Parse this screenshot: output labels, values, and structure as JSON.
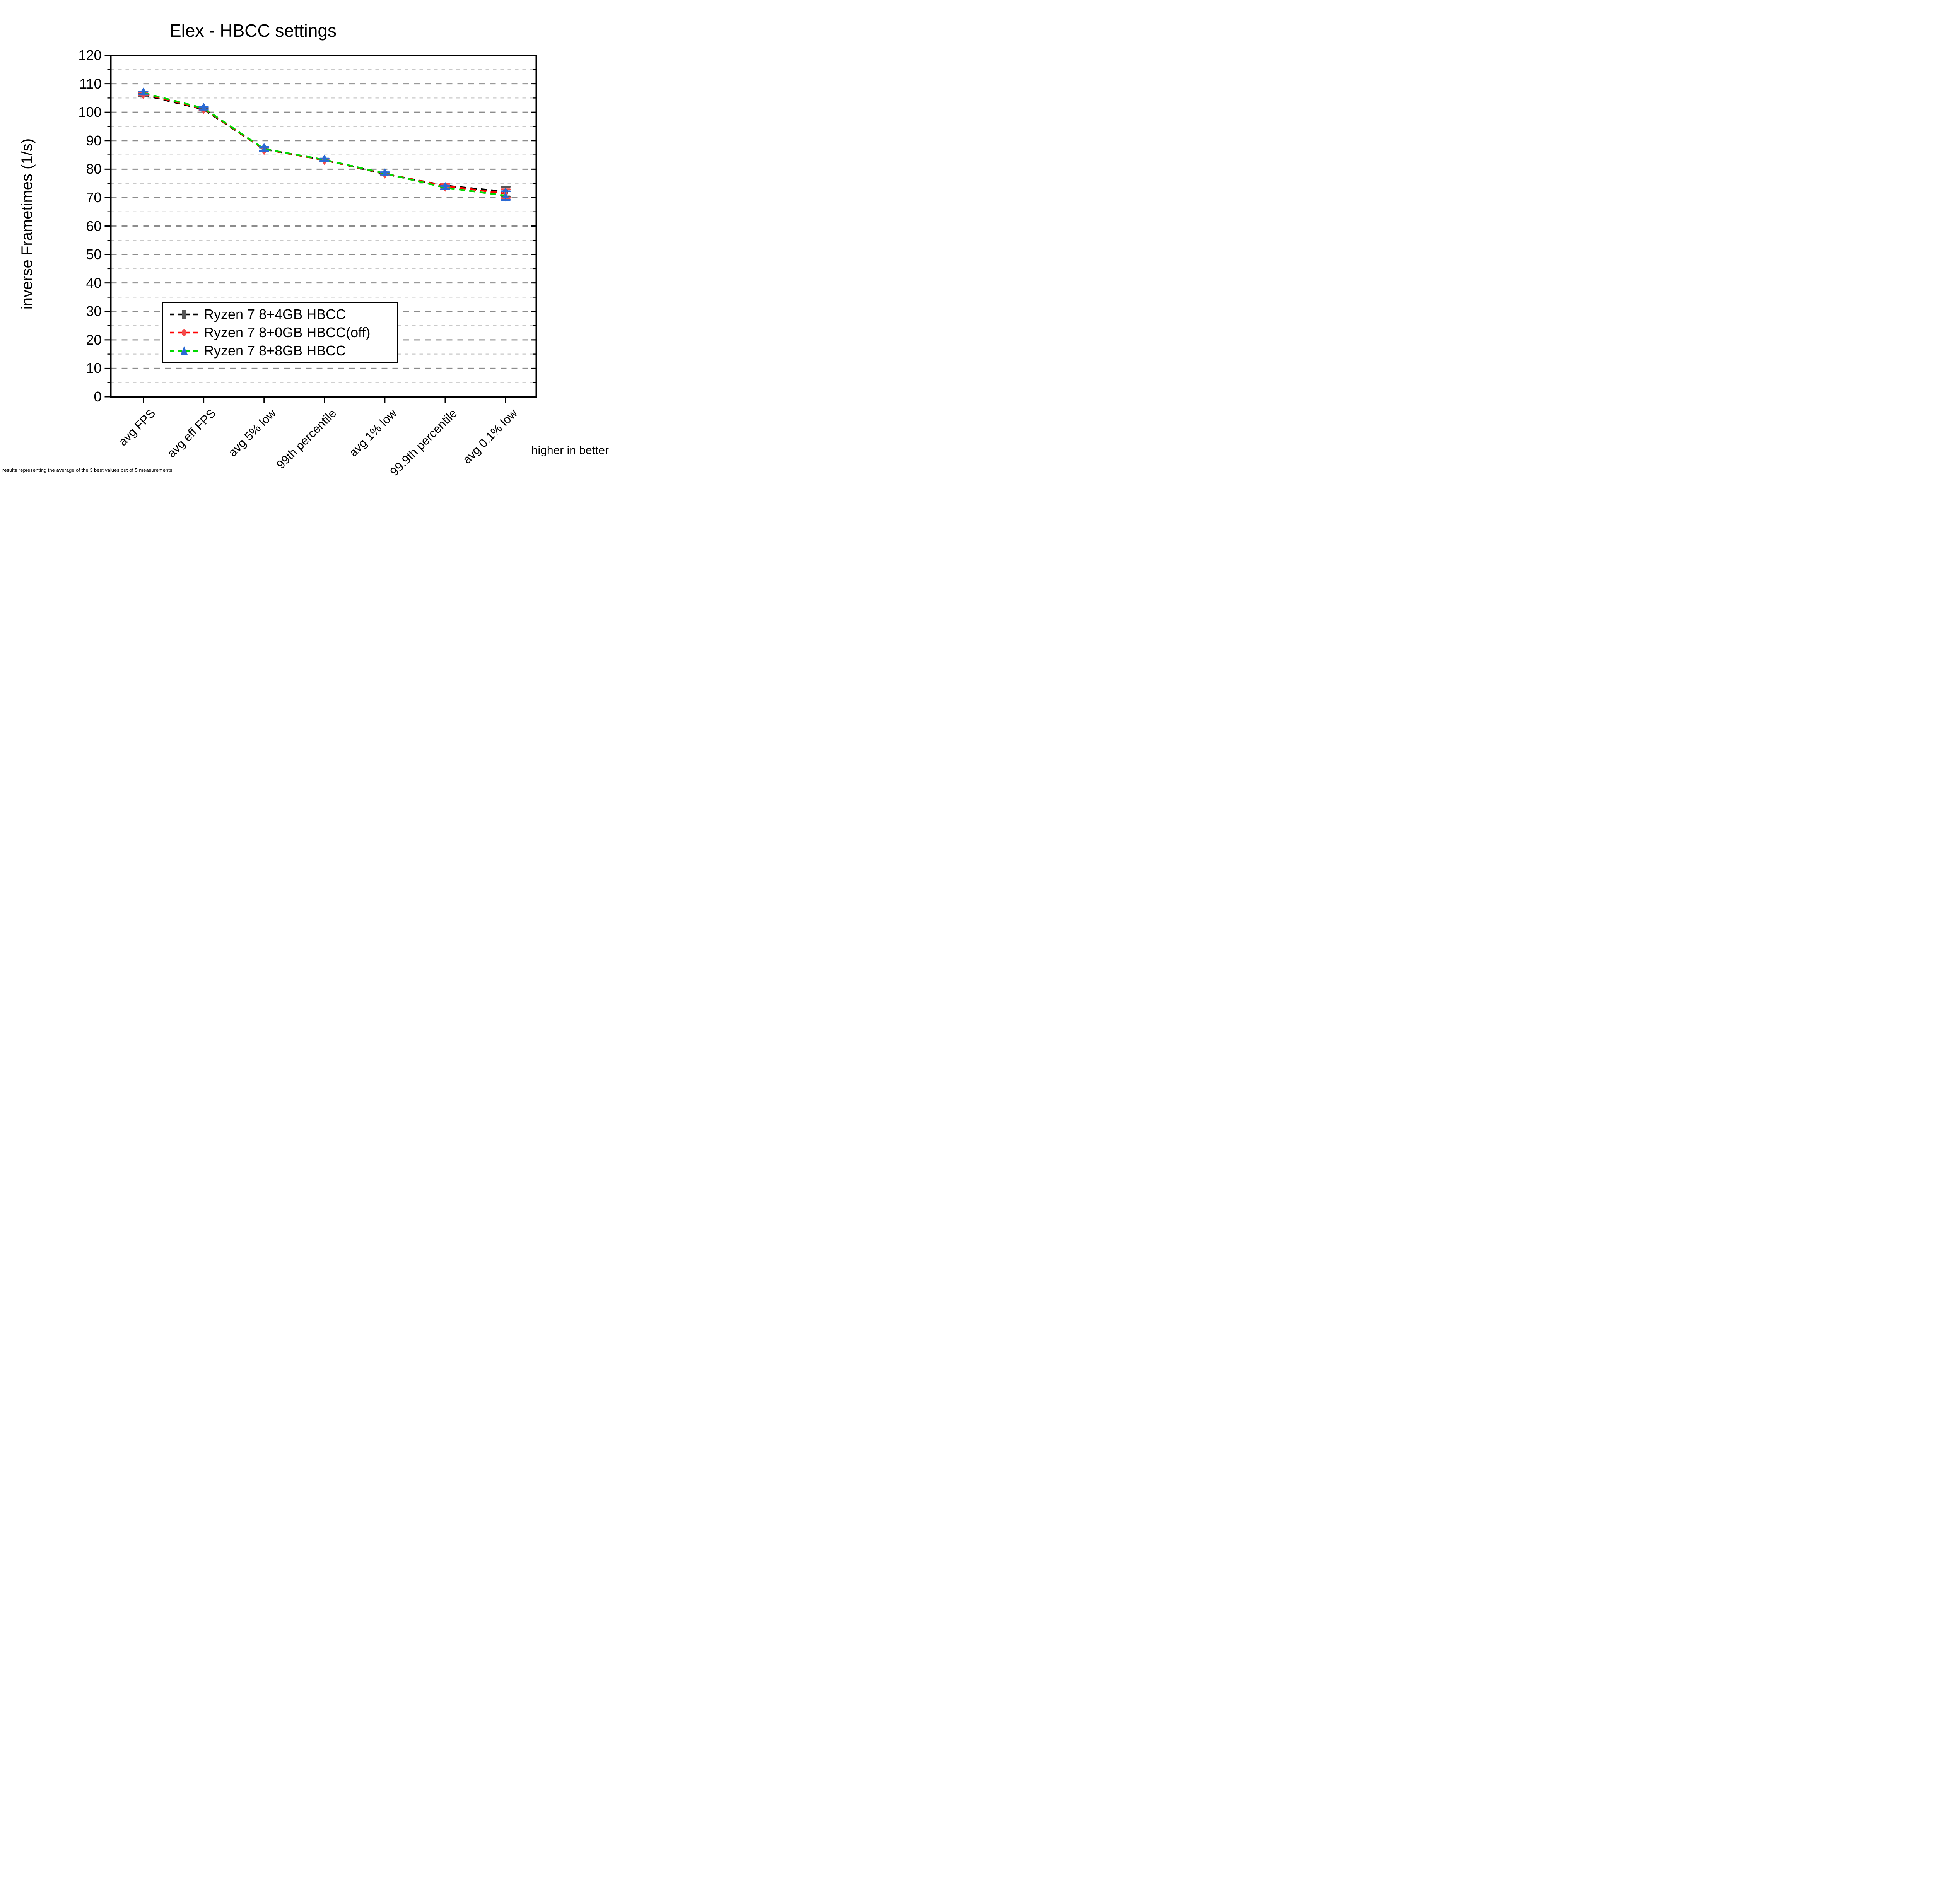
{
  "title": "Elex - HBCC settings",
  "y_axis": {
    "label": "inverse Frametimes (1/s)",
    "min": 0,
    "max": 120,
    "major_step": 10,
    "minor_step": 5,
    "tick_labels": [
      "0",
      "10",
      "20",
      "30",
      "40",
      "50",
      "60",
      "70",
      "80",
      "90",
      "100",
      "110",
      "120"
    ]
  },
  "x_axis": {
    "categories": [
      "avg FPS",
      "avg eff FPS",
      "avg 5% low",
      "99th percentile",
      "avg 1% low",
      "99.9th percentile",
      "avg 0.1% low"
    ],
    "note": "higher in better"
  },
  "legend": {
    "position": "inside bottom-left",
    "entries": [
      "Ryzen 7 8+4GB HBCC",
      "Ryzen 7 8+0GB HBCC(off)",
      "Ryzen 7 8+8GB HBCC"
    ]
  },
  "footer": "results representing the average of the 3 best values out of 5 measurements",
  "colors": {
    "major_grid": "#8c8c8c",
    "minor_grid": "#c9c9c9",
    "frame": "#000000",
    "background": "#ffffff"
  },
  "chart_data": {
    "type": "line",
    "title": "Elex - HBCC settings",
    "xlabel": "",
    "ylabel": "inverse Frametimes (1/s)",
    "ylim": [
      0,
      120
    ],
    "y_major_step": 10,
    "y_minor_step": 5,
    "grid": "horizontal dashed gridlines: dark gray at majors (10), light gray at minors (5)",
    "legend_position": "inside lower-left",
    "line_style": "dashed with error bars",
    "categories": [
      "avg FPS",
      "avg eff FPS",
      "avg 5% low",
      "99th percentile",
      "avg 1% low",
      "99.9th percentile",
      "avg 0.1% low"
    ],
    "series": [
      {
        "name": "Ryzen 7 8+4GB HBCC",
        "line_color": "#000000",
        "marker": "square",
        "marker_color": "#565656",
        "values": [
          106.1,
          101.0,
          87.0,
          83.2,
          78.3,
          74.2,
          72.1
        ],
        "errors": [
          0.5,
          0.4,
          0.6,
          0.35,
          0.35,
          0.7,
          1.7
        ]
      },
      {
        "name": "Ryzen 7 8+0GB HBCC(off)",
        "line_color": "#ff0000",
        "marker": "circle",
        "marker_color": "#f34c4c",
        "values": [
          106.5,
          101.2,
          87.0,
          83.2,
          78.4,
          74.1,
          71.4
        ],
        "errors": [
          0.6,
          0.5,
          0.7,
          0.4,
          0.4,
          0.7,
          1.5
        ]
      },
      {
        "name": "Ryzen 7 8+8GB HBCC",
        "line_color": "#00d800",
        "marker": "triangle",
        "marker_color": "#2a6ad4",
        "values": [
          106.8,
          101.4,
          87.1,
          83.3,
          78.5,
          73.5,
          70.7
        ],
        "errors": [
          0.5,
          0.45,
          0.7,
          0.4,
          0.4,
          0.6,
          1.5
        ]
      }
    ],
    "annotations": [
      "higher in better"
    ],
    "footnote": "results representing the average of the 3 best values out of 5 measurements"
  }
}
